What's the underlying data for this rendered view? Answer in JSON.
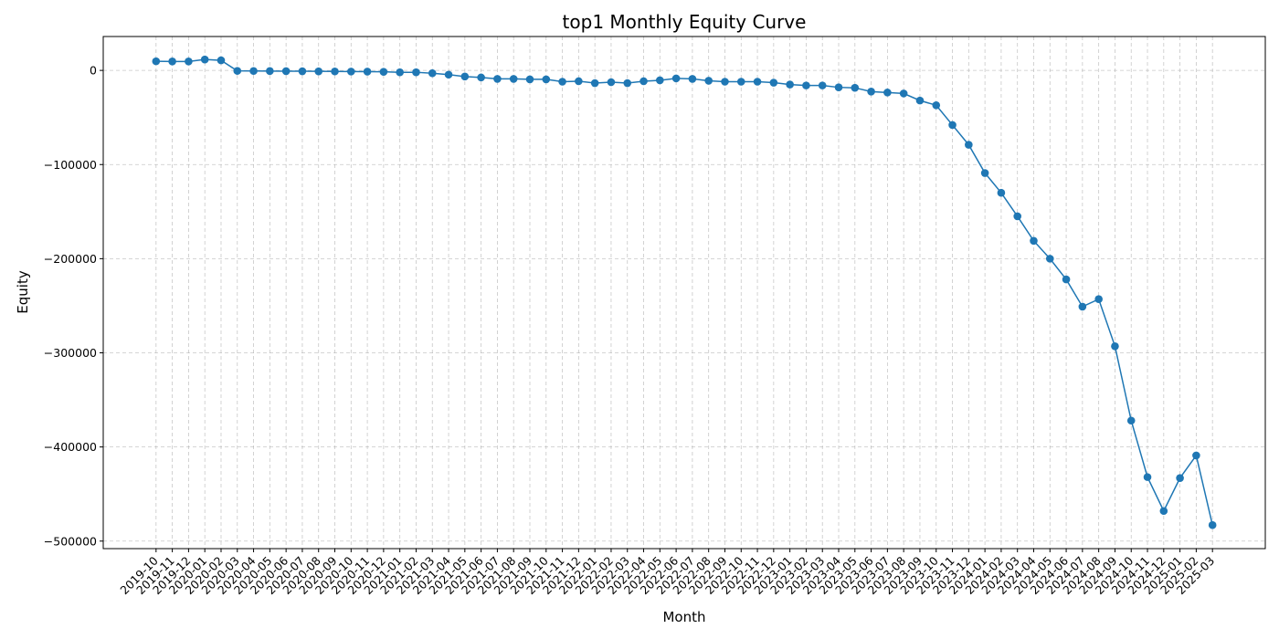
{
  "chart_data": {
    "type": "line",
    "title": "top1 Monthly Equity Curve",
    "xlabel": "Month",
    "ylabel": "Equity",
    "categories": [
      "2019-10",
      "2019-11",
      "2019-12",
      "2020-01",
      "2020-02",
      "2020-03",
      "2020-04",
      "2020-05",
      "2020-06",
      "2020-07",
      "2020-08",
      "2020-09",
      "2020-10",
      "2020-11",
      "2020-12",
      "2021-01",
      "2021-02",
      "2021-03",
      "2021-04",
      "2021-05",
      "2021-06",
      "2021-07",
      "2021-08",
      "2021-09",
      "2021-10",
      "2021-11",
      "2021-12",
      "2022-01",
      "2022-02",
      "2022-03",
      "2022-04",
      "2022-05",
      "2022-06",
      "2022-07",
      "2022-08",
      "2022-09",
      "2022-10",
      "2022-11",
      "2022-12",
      "2023-01",
      "2023-02",
      "2023-03",
      "2023-04",
      "2023-05",
      "2023-06",
      "2023-07",
      "2023-08",
      "2023-09",
      "2023-10",
      "2023-11",
      "2023-12",
      "2024-01",
      "2024-02",
      "2024-03",
      "2024-04",
      "2024-05",
      "2024-06",
      "2024-07",
      "2024-08",
      "2024-09",
      "2024-10",
      "2024-11",
      "2024-12",
      "2025-01",
      "2025-02",
      "2025-03"
    ],
    "values": [
      9700,
      9500,
      9500,
      11600,
      10700,
      -500,
      -600,
      -700,
      -800,
      -900,
      -1000,
      -1100,
      -1200,
      -1300,
      -1500,
      -2000,
      -2000,
      -3000,
      -4500,
      -6500,
      -7500,
      -9000,
      -9000,
      -9500,
      -9500,
      -12000,
      -11500,
      -13500,
      -12500,
      -13500,
      -11500,
      -10500,
      -8500,
      -9000,
      -11000,
      -12000,
      -12000,
      -12000,
      -13000,
      -15000,
      -16000,
      -16000,
      -18000,
      -18500,
      -22500,
      -23500,
      -24500,
      -32000,
      -37000,
      -58000,
      -79000,
      -109000,
      -130000,
      -155000,
      -181000,
      -200000,
      -222000,
      -251000,
      -243000,
      -293000,
      -372000,
      -432000,
      -468000,
      -433000,
      -409000,
      -483000
    ],
    "color": "#1f77b4",
    "ylim": [
      -508000,
      36000
    ],
    "yticks": [
      {
        "value": -500000,
        "label": "−500000"
      },
      {
        "value": -400000,
        "label": "−400000"
      },
      {
        "value": -300000,
        "label": "−300000"
      },
      {
        "value": -200000,
        "label": "−200000"
      },
      {
        "value": -100000,
        "label": "−100000"
      },
      0
    ],
    "grid": true
  }
}
